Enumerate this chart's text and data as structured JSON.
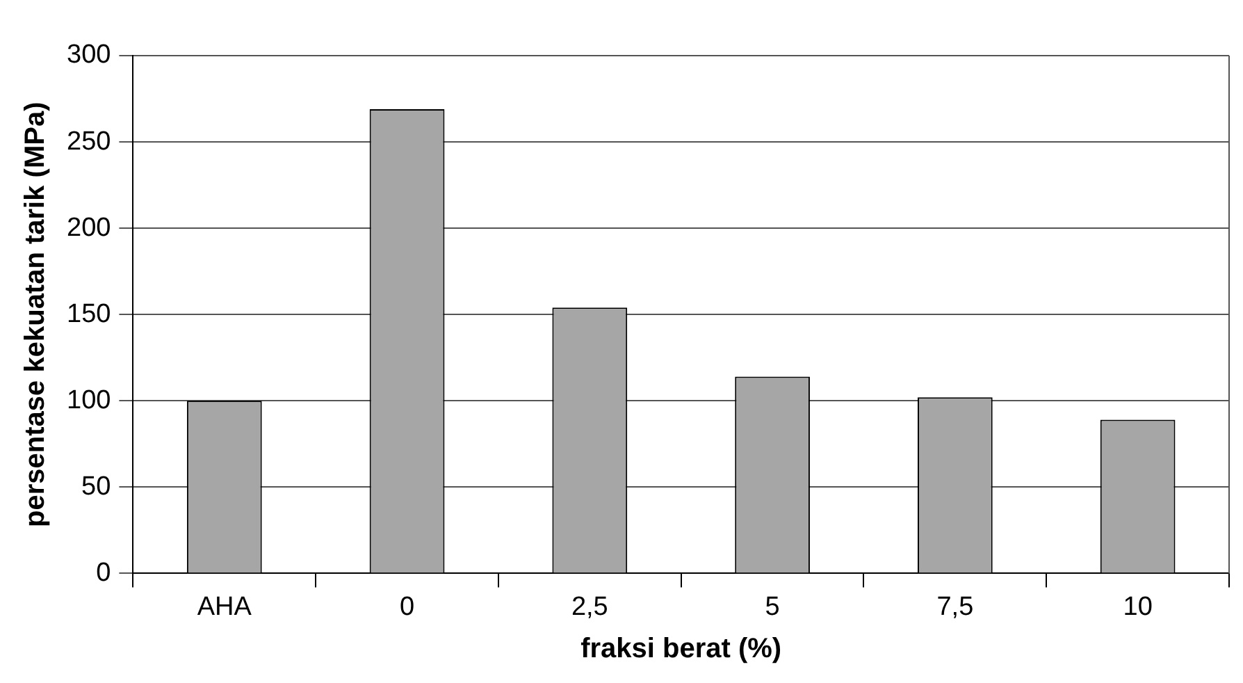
{
  "chart_data": {
    "type": "bar",
    "xlabel": "fraksi berat (%)",
    "ylabel": "persentase kekuatan tarik (MPa)",
    "categories": [
      "AHA",
      "0",
      "2,5",
      "5",
      "7,5",
      "10"
    ],
    "values": [
      100,
      269,
      154,
      114,
      102,
      89
    ],
    "color": "#a6a6a6",
    "ylim": [
      0,
      300
    ],
    "yticks": [
      0,
      50,
      100,
      150,
      200,
      250,
      300
    ],
    "grid": "y",
    "legend": false
  }
}
